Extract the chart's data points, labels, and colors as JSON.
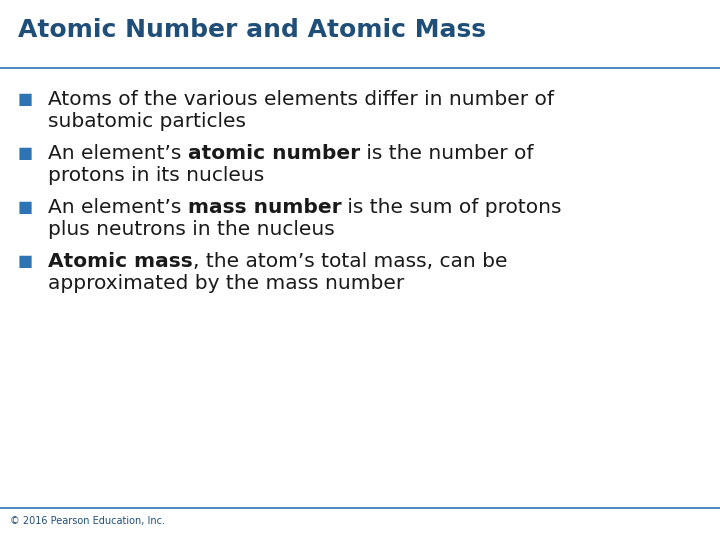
{
  "title": "Atomic Number and Atomic Mass",
  "title_color": "#1F4E79",
  "title_fontsize": 18,
  "background_color": "#FFFFFF",
  "footer_text": "© 2016 Pearson Education, Inc.",
  "footer_color": "#1F4E79",
  "footer_fontsize": 7,
  "separator_color": "#2E74B5",
  "bullet_color": "#2E74B5",
  "bullet_char": "■",
  "body_color": "#1a1a1a",
  "body_fontsize": 14.5,
  "bullet_items": [
    {
      "parts": [
        {
          "text": "Atoms of the various elements differ in number of\nsubatomic particles",
          "bold": false
        }
      ]
    },
    {
      "parts": [
        {
          "text": "An element’s ",
          "bold": false
        },
        {
          "text": "atomic number",
          "bold": true
        },
        {
          "text": " is the number of\nprotons in its nucleus",
          "bold": false
        }
      ]
    },
    {
      "parts": [
        {
          "text": "An element’s ",
          "bold": false
        },
        {
          "text": "mass number",
          "bold": true
        },
        {
          "text": " is the sum of protons\nplus neutrons in the nucleus",
          "bold": false
        }
      ]
    },
    {
      "parts": [
        {
          "text": "Atomic mass",
          "bold": true
        },
        {
          "text": ", the atom’s total mass, can be\napproximated by the mass number",
          "bold": false
        }
      ]
    }
  ]
}
